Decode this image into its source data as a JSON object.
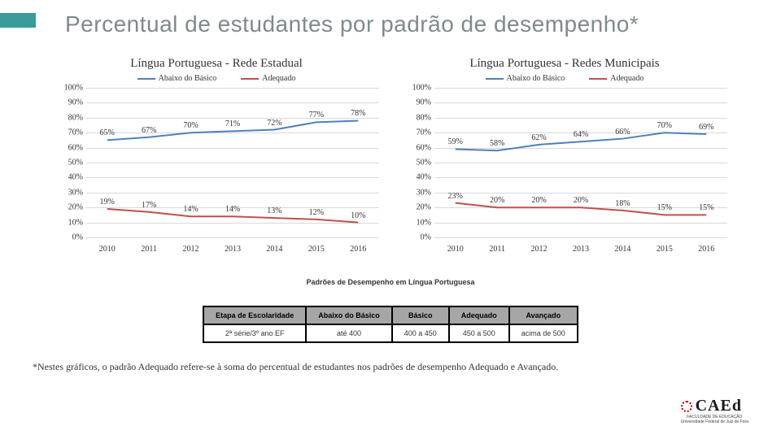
{
  "title": "Percentual de estudantes por padrão de desempenho*",
  "colors": {
    "series1": "#4f81bd",
    "series2": "#c0504d",
    "grid": "#d9d9d9",
    "accent": "#3a9b99"
  },
  "axis": {
    "ymin": 0,
    "ymax": 100,
    "ystep": 10,
    "yticks": [
      "0%",
      "10%",
      "20%",
      "30%",
      "40%",
      "50%",
      "60%",
      "70%",
      "80%",
      "90%",
      "100%"
    ]
  },
  "legend": {
    "s1": "Abaixo do Básico",
    "s2": "Adequado"
  },
  "chart1": {
    "title": "Língua Portuguesa - Rede Estadual",
    "categories": [
      "2010",
      "2011",
      "2012",
      "2013",
      "2014",
      "2015",
      "2016"
    ],
    "series1": [
      65,
      67,
      70,
      71,
      72,
      77,
      78
    ],
    "series2": [
      19,
      17,
      14,
      14,
      13,
      12,
      10
    ],
    "labels1": [
      "65%",
      "67%",
      "70%",
      "71%",
      "72%",
      "77%",
      "78%"
    ],
    "labels2": [
      "19%",
      "17%",
      "14%",
      "14%",
      "13%",
      "12%",
      "10%"
    ]
  },
  "chart2": {
    "title": "Língua Portuguesa - Redes Municipais",
    "categories": [
      "2010",
      "2011",
      "2012",
      "2013",
      "2014",
      "2015",
      "2016"
    ],
    "series1": [
      59,
      58,
      62,
      64,
      66,
      70,
      69
    ],
    "series2": [
      23,
      20,
      20,
      20,
      18,
      15,
      15
    ],
    "labels1": [
      "59%",
      "58%",
      "62%",
      "64%",
      "66%",
      "70%",
      "69%"
    ],
    "labels2": [
      "23%",
      "20%",
      "20%",
      "20%",
      "18%",
      "15%",
      "15%"
    ]
  },
  "standards": {
    "caption": "Padrões de Desempenho em Língua Portuguesa",
    "headers": [
      "Etapa de Escolaridade",
      "Abaixo do Básico",
      "Básico",
      "Adequado",
      "Avançado"
    ],
    "row": [
      "2ª série/3º ano EF",
      "até 400",
      "400 a 450",
      "450 a 500",
      "acima de 500"
    ]
  },
  "footnote": "*Nestes gráficos, o padrão Adequado refere-se à soma do percentual de estudantes nos padrões de desempenho Adequado e Avançado.",
  "logo": {
    "name": "CAEd",
    "sub1": "FACULDADE DE EDUCAÇÃO",
    "sub2": "Universidade Federal de Juiz de Fora"
  }
}
